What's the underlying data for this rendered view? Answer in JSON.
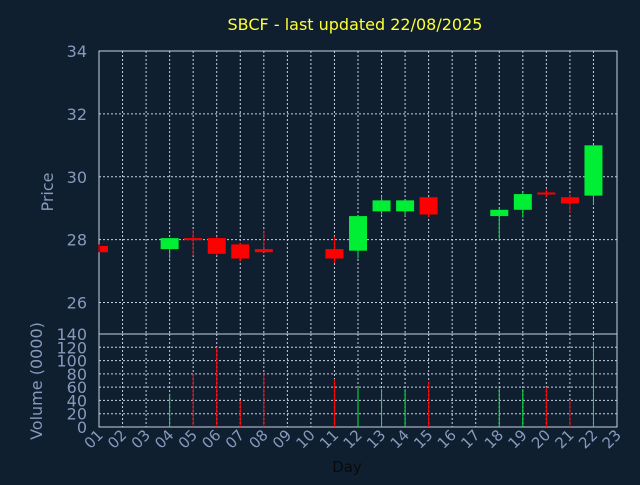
{
  "colors": {
    "background": "#0f1f30",
    "title": "#ffff33",
    "axis_text": "#8899bb",
    "grid": "#c8d0e0",
    "up": "#00ee33",
    "down": "#ff0000"
  },
  "chart_data": {
    "type": "candlestick",
    "title": "SBCF - last updated 22/08/2025",
    "xlabel": "Day",
    "price_panel": {
      "ylabel": "Price",
      "ylim": [
        25,
        34
      ],
      "yticks": [
        "26",
        "28",
        "30",
        "32",
        "34"
      ]
    },
    "volume_panel": {
      "ylabel": "Volume (0000)",
      "ylim": [
        0,
        140
      ],
      "yticks": [
        "0",
        "20",
        "40",
        "60",
        "80",
        "100",
        "120",
        "140"
      ]
    },
    "xlim": [
      1,
      23
    ],
    "xticks": [
      "01",
      "02",
      "03",
      "04",
      "05",
      "06",
      "07",
      "08",
      "09",
      "10",
      "11",
      "12",
      "13",
      "14",
      "15",
      "16",
      "17",
      "18",
      "19",
      "20",
      "21",
      "22",
      "23"
    ],
    "candles": [
      {
        "day": 1,
        "open": 27.8,
        "high": 27.85,
        "low": 27.6,
        "close": 27.6,
        "volume": 0
      },
      {
        "day": 4,
        "open": 27.7,
        "high": 28.05,
        "low": 27.4,
        "close": 28.05,
        "volume": 50
      },
      {
        "day": 5,
        "open": 28.05,
        "high": 28.3,
        "low": 27.5,
        "close": 28.0,
        "volume": 80
      },
      {
        "day": 6,
        "open": 28.05,
        "high": 28.1,
        "low": 27.5,
        "close": 27.55,
        "volume": 120
      },
      {
        "day": 7,
        "open": 27.85,
        "high": 27.9,
        "low": 27.3,
        "close": 27.4,
        "volume": 40
      },
      {
        "day": 8,
        "open": 27.7,
        "high": 28.3,
        "low": 27.6,
        "close": 27.6,
        "volume": 80
      },
      {
        "day": 11,
        "open": 27.7,
        "high": 28.1,
        "low": 27.25,
        "close": 27.4,
        "volume": 72
      },
      {
        "day": 12,
        "open": 27.65,
        "high": 28.75,
        "low": 27.4,
        "close": 28.75,
        "volume": 60
      },
      {
        "day": 13,
        "open": 28.9,
        "high": 29.4,
        "low": 28.8,
        "close": 29.25,
        "volume": 57
      },
      {
        "day": 14,
        "open": 28.9,
        "high": 29.25,
        "low": 28.75,
        "close": 29.25,
        "volume": 57
      },
      {
        "day": 15,
        "open": 29.35,
        "high": 29.35,
        "low": 28.7,
        "close": 28.8,
        "volume": 68
      },
      {
        "day": 18,
        "open": 28.75,
        "high": 29.0,
        "low": 28.0,
        "close": 28.95,
        "volume": 58
      },
      {
        "day": 19,
        "open": 28.95,
        "high": 29.5,
        "low": 28.7,
        "close": 29.45,
        "volume": 57
      },
      {
        "day": 20,
        "open": 29.5,
        "high": 29.6,
        "low": 29.35,
        "close": 29.45,
        "volume": 60
      },
      {
        "day": 21,
        "open": 29.35,
        "high": 29.45,
        "low": 28.85,
        "close": 29.15,
        "volume": 40
      },
      {
        "day": 22,
        "open": 29.4,
        "high": 31.0,
        "low": 29.1,
        "close": 31.0,
        "volume": 128
      }
    ]
  }
}
